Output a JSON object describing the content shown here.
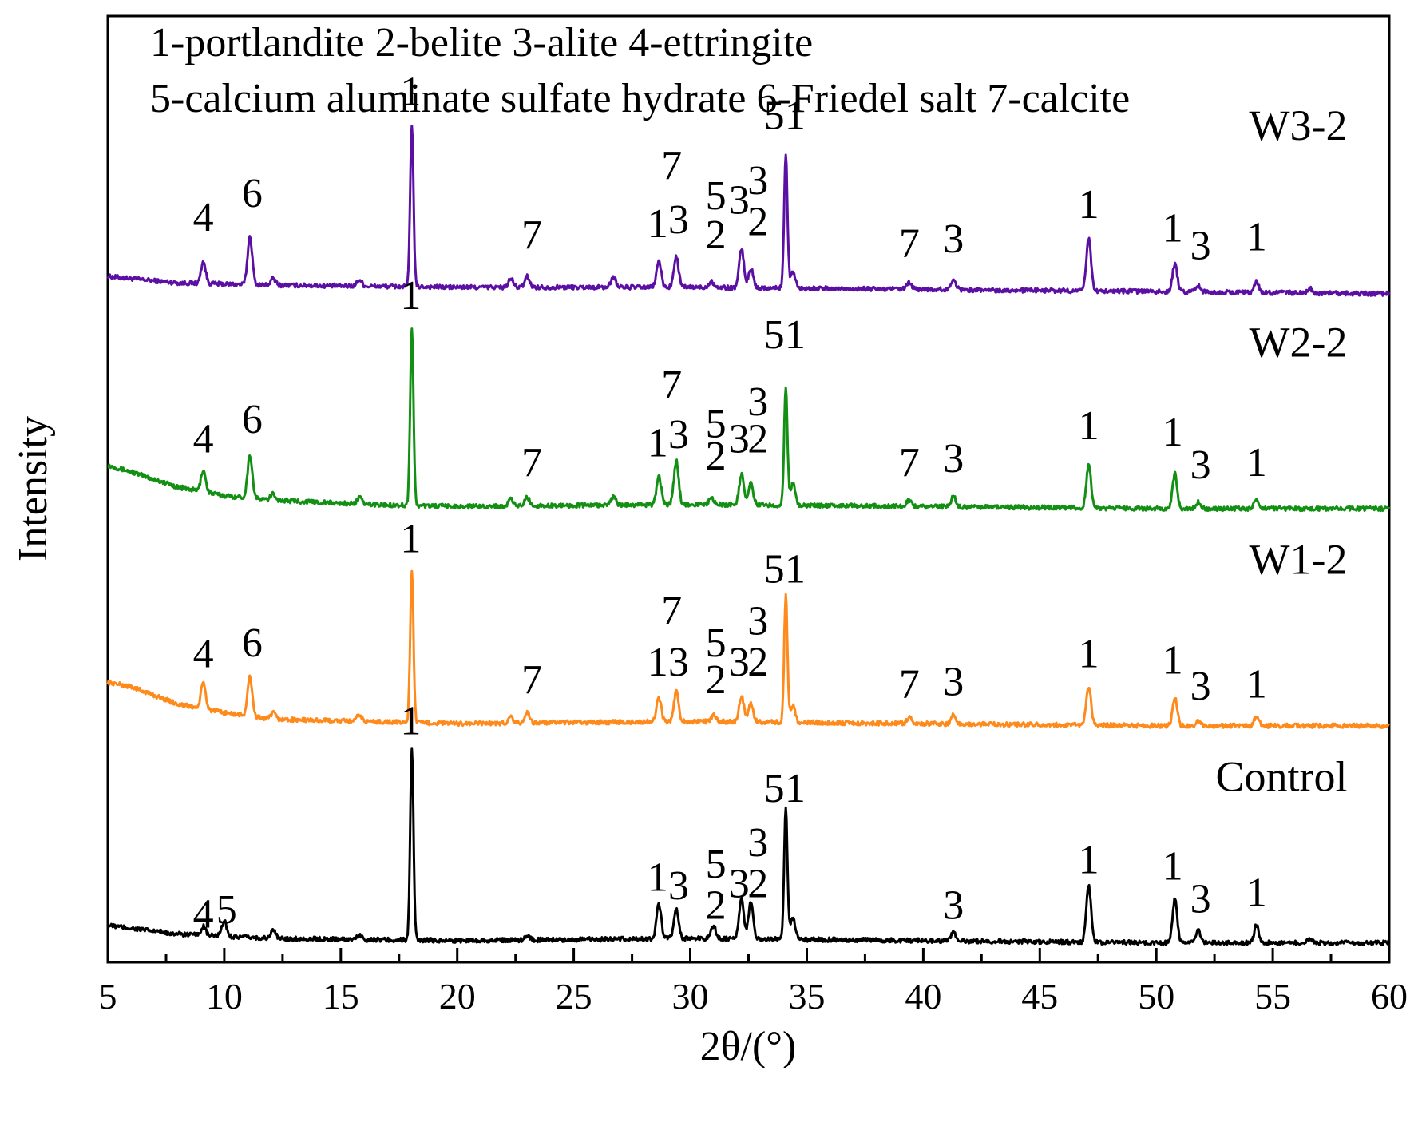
{
  "chart_data": {
    "type": "line",
    "title": "",
    "xlabel": "2θ/(°)",
    "ylabel": "Intensity",
    "xlim": [
      5,
      60
    ],
    "xticks": [
      5,
      10,
      15,
      20,
      25,
      30,
      35,
      40,
      45,
      50,
      55,
      60
    ],
    "xtick_labels": [
      "5",
      "10",
      "15",
      "20",
      "25",
      "30",
      "35",
      "40",
      "45",
      "50",
      "55",
      "60"
    ],
    "y_ticks_shown": false,
    "legend_lines": [
      "1-portlandite 2-belite 3-alite 4-ettringite",
      "5-calcium aluminate sulfate hydrate 6-Friedel salt 7-calcite"
    ],
    "series": [
      {
        "name": "W3-2",
        "color": "#5B0FA3",
        "offset": 3.0,
        "background": [
          [
            5,
            0.07
          ],
          [
            8,
            0.04
          ],
          [
            12,
            0.03
          ],
          [
            20,
            0.02
          ],
          [
            30,
            0.02
          ],
          [
            40,
            0.01
          ],
          [
            50,
            0.0
          ],
          [
            60,
            -0.01
          ]
        ],
        "peaks": [
          [
            9.1,
            0.1
          ],
          [
            11.1,
            0.22
          ],
          [
            12.1,
            0.03
          ],
          [
            15.8,
            0.03
          ],
          [
            18.05,
            0.75
          ],
          [
            22.3,
            0.04
          ],
          [
            23.0,
            0.05
          ],
          [
            26.7,
            0.05
          ],
          [
            28.65,
            0.12
          ],
          [
            29.4,
            0.14
          ],
          [
            30.9,
            0.03
          ],
          [
            32.2,
            0.18
          ],
          [
            32.6,
            0.09
          ],
          [
            34.1,
            0.62
          ],
          [
            34.4,
            0.08
          ],
          [
            39.4,
            0.03
          ],
          [
            41.3,
            0.05
          ],
          [
            47.1,
            0.24
          ],
          [
            50.8,
            0.13
          ],
          [
            51.8,
            0.03
          ],
          [
            54.3,
            0.05
          ],
          [
            56.6,
            0.02
          ]
        ],
        "labels": [
          {
            "text": "4",
            "x": 9.1,
            "y": 3.28
          },
          {
            "text": "6",
            "x": 11.2,
            "y": 3.39
          },
          {
            "text": "1",
            "x": 18.0,
            "y": 3.86
          },
          {
            "text": "7",
            "x": 23.2,
            "y": 3.2
          },
          {
            "text": "1",
            "x": 28.6,
            "y": 3.25
          },
          {
            "text": "3",
            "x": 29.5,
            "y": 3.27
          },
          {
            "text": "7",
            "x": 29.2,
            "y": 3.52
          },
          {
            "text": "2",
            "x": 31.1,
            "y": 3.2
          },
          {
            "text": "5",
            "x": 31.1,
            "y": 3.38
          },
          {
            "text": "3",
            "x": 32.1,
            "y": 3.36
          },
          {
            "text": "2",
            "x": 32.9,
            "y": 3.26
          },
          {
            "text": "3",
            "x": 32.9,
            "y": 3.45
          },
          {
            "text": "5",
            "x": 33.6,
            "y": 3.75
          },
          {
            "text": "1",
            "x": 34.5,
            "y": 3.75
          },
          {
            "text": "7",
            "x": 39.4,
            "y": 3.16
          },
          {
            "text": "3",
            "x": 41.3,
            "y": 3.18
          },
          {
            "text": "1",
            "x": 47.1,
            "y": 3.34
          },
          {
            "text": "1",
            "x": 50.7,
            "y": 3.23
          },
          {
            "text": "3",
            "x": 51.9,
            "y": 3.15
          },
          {
            "text": "1",
            "x": 54.3,
            "y": 3.19
          }
        ]
      },
      {
        "name": "W2-2",
        "color": "#138F14",
        "offset": 2.0,
        "background": [
          [
            5,
            0.2
          ],
          [
            6,
            0.17
          ],
          [
            8,
            0.1
          ],
          [
            10,
            0.06
          ],
          [
            12,
            0.04
          ],
          [
            16,
            0.02
          ],
          [
            20,
            0.01
          ],
          [
            30,
            0.02
          ],
          [
            40,
            0.01
          ],
          [
            50,
            0.0
          ],
          [
            60,
            0.0
          ]
        ],
        "peaks": [
          [
            9.1,
            0.1
          ],
          [
            11.1,
            0.2
          ],
          [
            12.1,
            0.03
          ],
          [
            15.8,
            0.03
          ],
          [
            18.05,
            0.82
          ],
          [
            22.3,
            0.03
          ],
          [
            23.0,
            0.04
          ],
          [
            26.7,
            0.04
          ],
          [
            28.65,
            0.13
          ],
          [
            29.4,
            0.2
          ],
          [
            30.9,
            0.03
          ],
          [
            32.2,
            0.14
          ],
          [
            32.6,
            0.1
          ],
          [
            34.1,
            0.55
          ],
          [
            34.4,
            0.1
          ],
          [
            39.4,
            0.03
          ],
          [
            41.3,
            0.05
          ],
          [
            47.1,
            0.2
          ],
          [
            50.8,
            0.16
          ],
          [
            51.8,
            0.03
          ],
          [
            54.3,
            0.04
          ]
        ],
        "labels": [
          {
            "text": "4",
            "x": 9.1,
            "y": 2.26
          },
          {
            "text": "6",
            "x": 11.2,
            "y": 2.35
          },
          {
            "text": "1",
            "x": 18.0,
            "y": 2.92
          },
          {
            "text": "7",
            "x": 23.2,
            "y": 2.15
          },
          {
            "text": "1",
            "x": 28.6,
            "y": 2.24
          },
          {
            "text": "3",
            "x": 29.5,
            "y": 2.28
          },
          {
            "text": "7",
            "x": 29.2,
            "y": 2.51
          },
          {
            "text": "2",
            "x": 31.1,
            "y": 2.18
          },
          {
            "text": "5",
            "x": 31.1,
            "y": 2.33
          },
          {
            "text": "3",
            "x": 32.1,
            "y": 2.26
          },
          {
            "text": "2",
            "x": 32.9,
            "y": 2.26
          },
          {
            "text": "3",
            "x": 32.9,
            "y": 2.43
          },
          {
            "text": "5",
            "x": 33.6,
            "y": 2.74
          },
          {
            "text": "1",
            "x": 34.5,
            "y": 2.74
          },
          {
            "text": "7",
            "x": 39.4,
            "y": 2.15
          },
          {
            "text": "3",
            "x": 41.3,
            "y": 2.17
          },
          {
            "text": "1",
            "x": 47.1,
            "y": 2.32
          },
          {
            "text": "1",
            "x": 50.7,
            "y": 2.29
          },
          {
            "text": "3",
            "x": 51.9,
            "y": 2.14
          },
          {
            "text": "1",
            "x": 54.3,
            "y": 2.15
          }
        ]
      },
      {
        "name": "W1-2",
        "color": "#FF8A1C",
        "offset": 1.0,
        "background": [
          [
            5,
            0.2
          ],
          [
            6,
            0.18
          ],
          [
            8,
            0.1
          ],
          [
            10,
            0.06
          ],
          [
            12,
            0.03
          ],
          [
            16,
            0.02
          ],
          [
            20,
            0.01
          ],
          [
            30,
            0.02
          ],
          [
            40,
            0.01
          ],
          [
            50,
            0.0
          ],
          [
            60,
            0.0
          ]
        ],
        "peaks": [
          [
            9.1,
            0.12
          ],
          [
            11.1,
            0.18
          ],
          [
            12.1,
            0.03
          ],
          [
            15.8,
            0.03
          ],
          [
            18.05,
            0.7
          ],
          [
            22.3,
            0.03
          ],
          [
            23.0,
            0.05
          ],
          [
            28.65,
            0.11
          ],
          [
            29.4,
            0.14
          ],
          [
            31.0,
            0.03
          ],
          [
            32.2,
            0.12
          ],
          [
            32.6,
            0.09
          ],
          [
            34.1,
            0.58
          ],
          [
            34.4,
            0.08
          ],
          [
            39.4,
            0.03
          ],
          [
            41.3,
            0.04
          ],
          [
            47.1,
            0.18
          ],
          [
            50.8,
            0.13
          ],
          [
            51.8,
            0.02
          ],
          [
            54.3,
            0.04
          ]
        ],
        "labels": [
          {
            "text": "4",
            "x": 9.1,
            "y": 1.27
          },
          {
            "text": "6",
            "x": 11.2,
            "y": 1.32
          },
          {
            "text": "1",
            "x": 18.0,
            "y": 1.8
          },
          {
            "text": "7",
            "x": 23.2,
            "y": 1.15
          },
          {
            "text": "1",
            "x": 28.6,
            "y": 1.23
          },
          {
            "text": "3",
            "x": 29.5,
            "y": 1.23
          },
          {
            "text": "7",
            "x": 29.2,
            "y": 1.47
          },
          {
            "text": "2",
            "x": 31.1,
            "y": 1.15
          },
          {
            "text": "5",
            "x": 31.1,
            "y": 1.32
          },
          {
            "text": "3",
            "x": 32.1,
            "y": 1.23
          },
          {
            "text": "2",
            "x": 32.9,
            "y": 1.23
          },
          {
            "text": "3",
            "x": 32.9,
            "y": 1.42
          },
          {
            "text": "5",
            "x": 33.6,
            "y": 1.66
          },
          {
            "text": "1",
            "x": 34.5,
            "y": 1.66
          },
          {
            "text": "7",
            "x": 39.4,
            "y": 1.13
          },
          {
            "text": "3",
            "x": 41.3,
            "y": 1.14
          },
          {
            "text": "1",
            "x": 47.1,
            "y": 1.27
          },
          {
            "text": "1",
            "x": 50.7,
            "y": 1.24
          },
          {
            "text": "3",
            "x": 51.9,
            "y": 1.12
          },
          {
            "text": "1",
            "x": 54.3,
            "y": 1.13
          }
        ]
      },
      {
        "name": "Control",
        "color": "#000000",
        "offset": 0.0,
        "background": [
          [
            5,
            0.08
          ],
          [
            8,
            0.04
          ],
          [
            12,
            0.02
          ],
          [
            20,
            0.01
          ],
          [
            30,
            0.02
          ],
          [
            40,
            0.01
          ],
          [
            50,
            0.0
          ],
          [
            60,
            0.0
          ]
        ],
        "peaks": [
          [
            9.1,
            0.04
          ],
          [
            10.0,
            0.07
          ],
          [
            12.1,
            0.04
          ],
          [
            15.8,
            0.02
          ],
          [
            18.05,
            0.88
          ],
          [
            23.0,
            0.02
          ],
          [
            28.65,
            0.16
          ],
          [
            29.4,
            0.14
          ],
          [
            31.0,
            0.06
          ],
          [
            32.2,
            0.18
          ],
          [
            32.6,
            0.17
          ],
          [
            34.1,
            0.6
          ],
          [
            34.4,
            0.1
          ],
          [
            41.3,
            0.04
          ],
          [
            47.1,
            0.26
          ],
          [
            50.8,
            0.2
          ],
          [
            51.8,
            0.06
          ],
          [
            54.3,
            0.08
          ],
          [
            56.6,
            0.02
          ]
        ],
        "labels": [
          {
            "text": "4",
            "x": 9.1,
            "y": 0.07
          },
          {
            "text": "5",
            "x": 10.1,
            "y": 0.09
          },
          {
            "text": "1",
            "x": 18.0,
            "y": 0.96
          },
          {
            "text": "1",
            "x": 28.6,
            "y": 0.24
          },
          {
            "text": "3",
            "x": 29.5,
            "y": 0.2
          },
          {
            "text": "2",
            "x": 31.1,
            "y": 0.11
          },
          {
            "text": "5",
            "x": 31.1,
            "y": 0.3
          },
          {
            "text": "3",
            "x": 32.1,
            "y": 0.21
          },
          {
            "text": "2",
            "x": 32.9,
            "y": 0.21
          },
          {
            "text": "3",
            "x": 32.9,
            "y": 0.4
          },
          {
            "text": "5",
            "x": 33.6,
            "y": 0.65
          },
          {
            "text": "1",
            "x": 34.5,
            "y": 0.65
          },
          {
            "text": "3",
            "x": 41.3,
            "y": 0.11
          },
          {
            "text": "1",
            "x": 47.1,
            "y": 0.32
          },
          {
            "text": "1",
            "x": 50.7,
            "y": 0.29
          },
          {
            "text": "3",
            "x": 51.9,
            "y": 0.14
          },
          {
            "text": "1",
            "x": 54.3,
            "y": 0.17
          }
        ]
      }
    ]
  }
}
